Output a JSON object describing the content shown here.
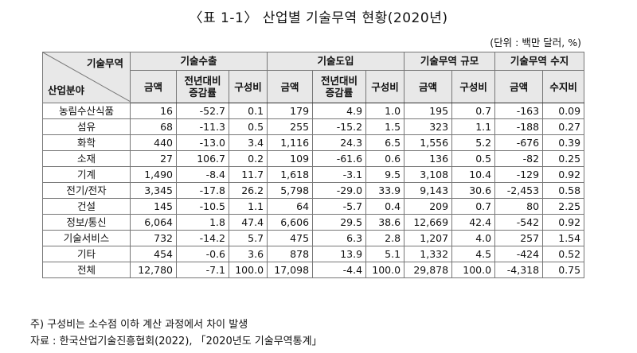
{
  "title": "〈표 1-1〉 산업별 기술무역 현황(2020년)",
  "unit": "(단위 : 백만 달러, %)",
  "corner": {
    "top": "기술무역",
    "bottom": "산업분야"
  },
  "groups": {
    "export": "기술수출",
    "import": "기술도입",
    "scale": "기술무역 규모",
    "balance": "기술무역 수지"
  },
  "sub": {
    "amount": "금액",
    "growth1": "전년대비",
    "growth2": "증감률",
    "share": "구성비",
    "ratio": "수지비"
  },
  "rows": [
    {
      "name": "농림수산식품",
      "c": [
        "16",
        "-52.7",
        "0.1",
        "179",
        "4.9",
        "1.0",
        "195",
        "0.7",
        "-163",
        "0.09"
      ]
    },
    {
      "name": "섬유",
      "c": [
        "68",
        "-11.3",
        "0.5",
        "255",
        "-15.2",
        "1.5",
        "323",
        "1.1",
        "-188",
        "0.27"
      ]
    },
    {
      "name": "화학",
      "c": [
        "440",
        "-13.0",
        "3.4",
        "1,116",
        "24.3",
        "6.5",
        "1,556",
        "5.2",
        "-676",
        "0.39"
      ]
    },
    {
      "name": "소재",
      "c": [
        "27",
        "106.7",
        "0.2",
        "109",
        "-61.6",
        "0.6",
        "136",
        "0.5",
        "-82",
        "0.25"
      ]
    },
    {
      "name": "기계",
      "c": [
        "1,490",
        "-8.4",
        "11.7",
        "1,618",
        "-3.1",
        "9.5",
        "3,108",
        "10.4",
        "-129",
        "0.92"
      ]
    },
    {
      "name": "전기/전자",
      "c": [
        "3,345",
        "-17.8",
        "26.2",
        "5,798",
        "-29.0",
        "33.9",
        "9,143",
        "30.6",
        "-2,453",
        "0.58"
      ]
    },
    {
      "name": "건설",
      "c": [
        "145",
        "-10.5",
        "1.1",
        "64",
        "-5.7",
        "0.4",
        "209",
        "0.7",
        "80",
        "2.25"
      ]
    },
    {
      "name": "정보/통신",
      "c": [
        "6,064",
        "1.8",
        "47.4",
        "6,606",
        "29.5",
        "38.6",
        "12,669",
        "42.4",
        "-542",
        "0.92"
      ]
    },
    {
      "name": "기술서비스",
      "c": [
        "732",
        "-14.2",
        "5.7",
        "475",
        "6.3",
        "2.8",
        "1,207",
        "4.0",
        "257",
        "1.54"
      ]
    },
    {
      "name": "기타",
      "c": [
        "454",
        "-0.6",
        "3.6",
        "878",
        "13.9",
        "5.1",
        "1,332",
        "4.5",
        "-424",
        "0.52"
      ]
    }
  ],
  "total": {
    "name": "전체",
    "c": [
      "12,780",
      "-7.1",
      "100.0",
      "17,098",
      "-4.4",
      "100.0",
      "29,878",
      "100.0",
      "-4,318",
      "0.75"
    ]
  },
  "note1": "주) 구성비는 소수점 이하 계산 과정에서 차이 발생",
  "note2": "자료 : 한국산업기술진흥협회(2022), 「2020년도 기술무역통계」"
}
